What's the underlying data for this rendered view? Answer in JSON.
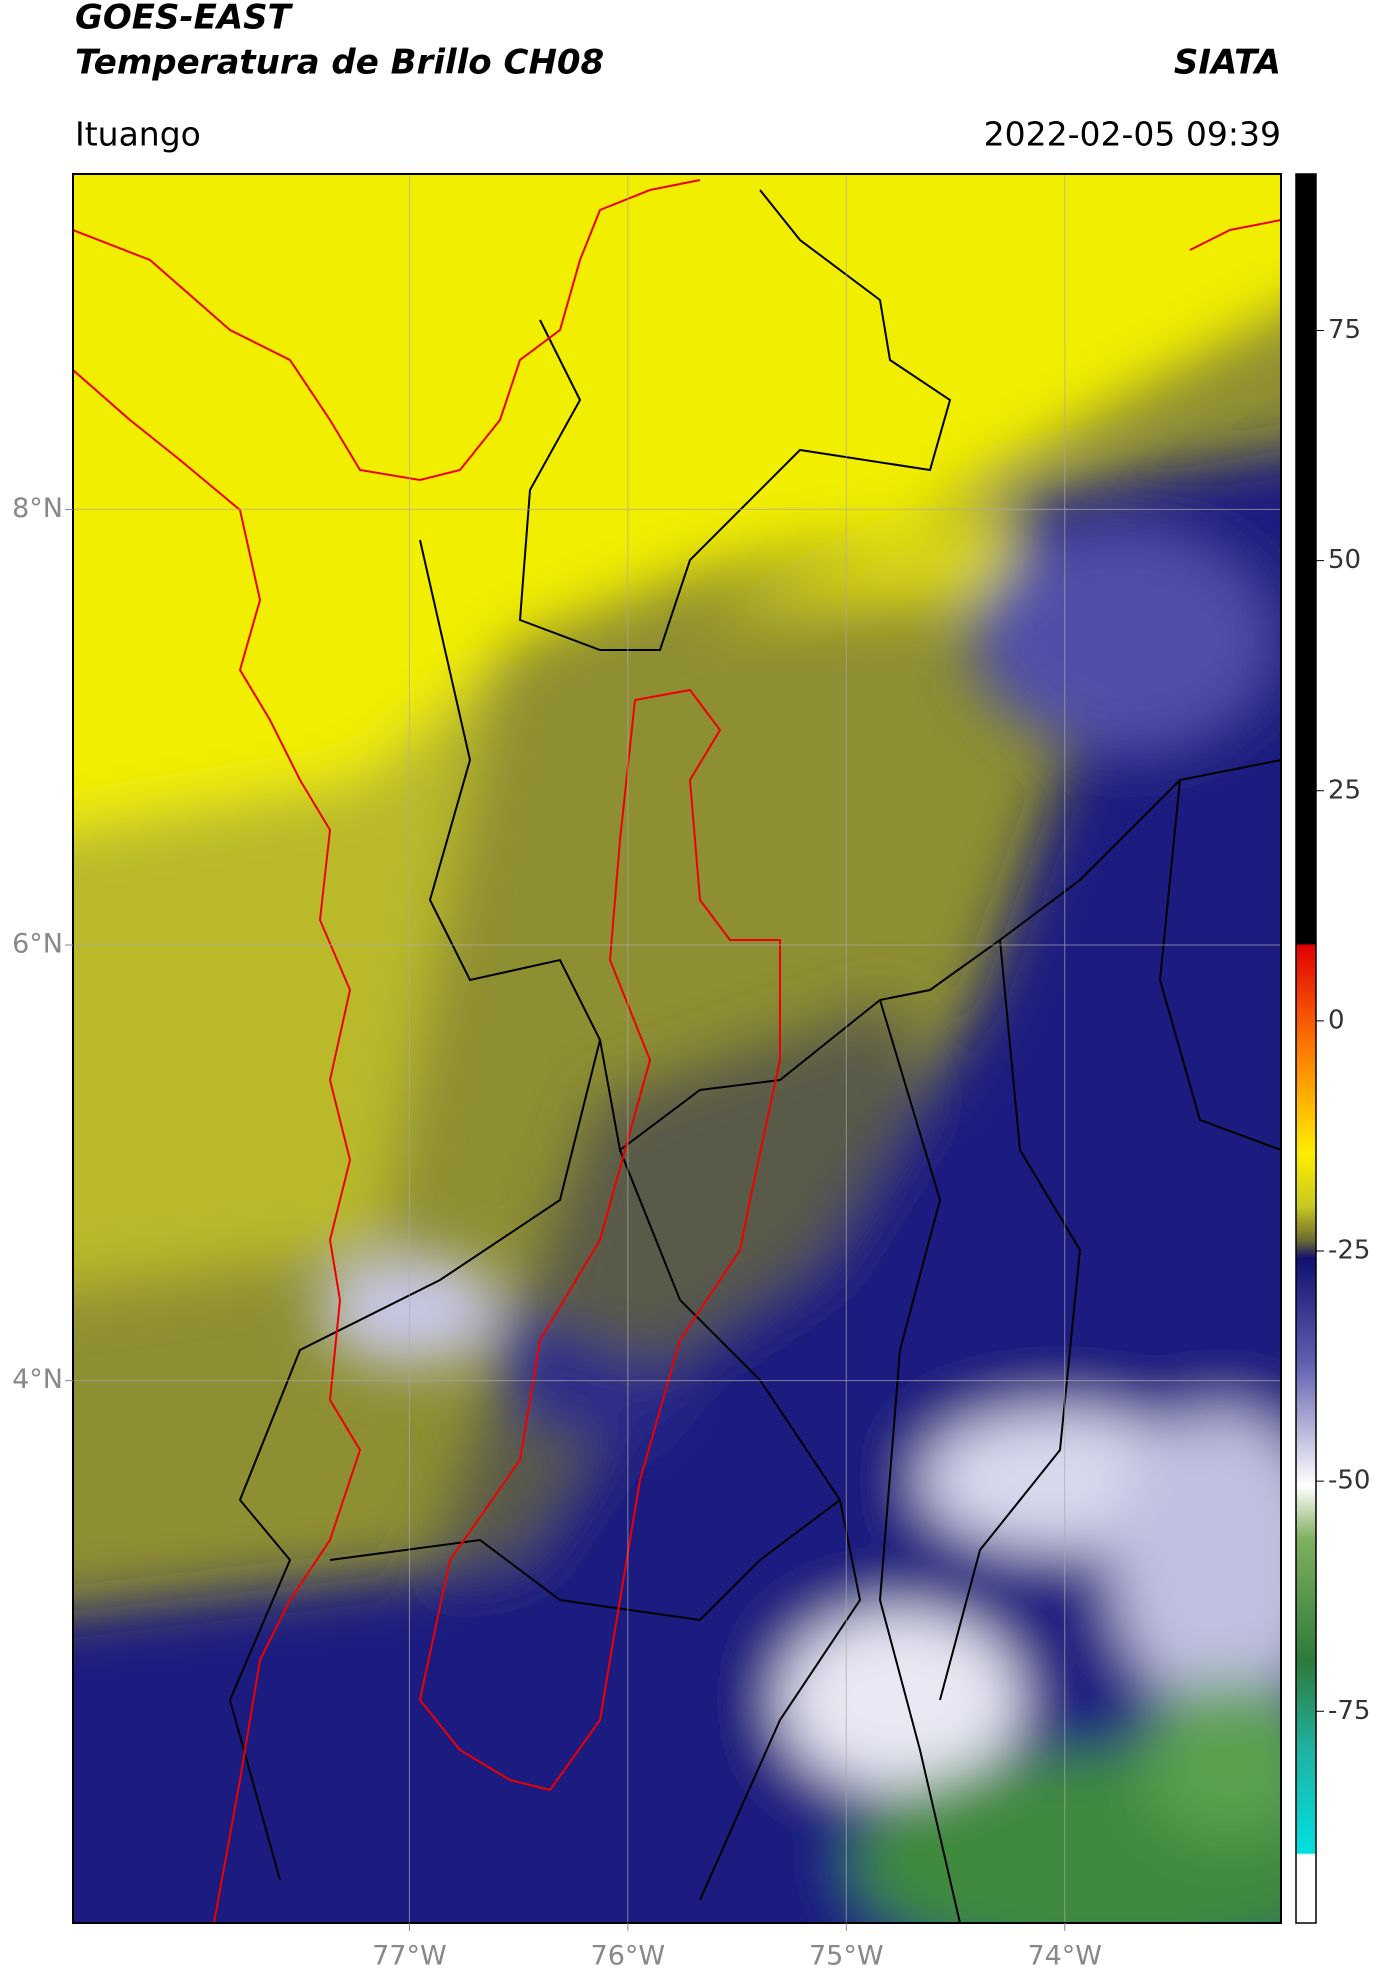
{
  "header": {
    "title": "GOES-EAST",
    "subtitle": "Temperatura de Brillo CH08",
    "agency": "SIATA",
    "location": "Ituango",
    "timestamp": "2022-02-05 09:39"
  },
  "map": {
    "xlim": [
      -78.54,
      -73.01
    ],
    "ylim": [
      1.51,
      9.54
    ],
    "xticks": [
      {
        "value": -77,
        "label": "77°W"
      },
      {
        "value": -76,
        "label": "76°W"
      },
      {
        "value": -75,
        "label": "75°W"
      },
      {
        "value": -74,
        "label": "74°W"
      }
    ],
    "yticks": [
      {
        "value": 4,
        "label": "4°N"
      },
      {
        "value": 6,
        "label": "6°N"
      },
      {
        "value": 8,
        "label": "8°N"
      }
    ],
    "grid": true
  },
  "colorbar": {
    "lim": [
      -98,
      92
    ],
    "ticks": [
      -75,
      -50,
      -25,
      0,
      25,
      50,
      75
    ]
  }
}
